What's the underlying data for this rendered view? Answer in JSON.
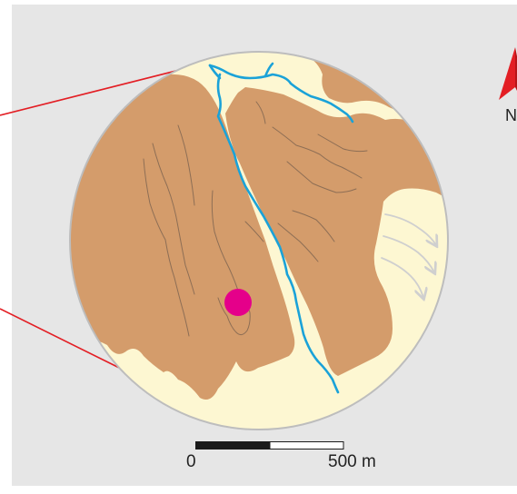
{
  "map": {
    "colors": {
      "panel": "#e6e6e6",
      "terrain": "#d49c6b",
      "lowland": "#fdf7d2",
      "river": "#1aa2d8",
      "marker": "#e5008a",
      "leader_lines": "#e31e24",
      "north_arrow": "#e31e24",
      "flow_arrows": "#cfcfcf"
    },
    "icons": {
      "north": "north-arrow-icon",
      "marker": "location-marker-icon"
    }
  },
  "scale_bar": {
    "start_label": "0",
    "end_label": "500 m"
  },
  "north": {
    "label": "N"
  }
}
